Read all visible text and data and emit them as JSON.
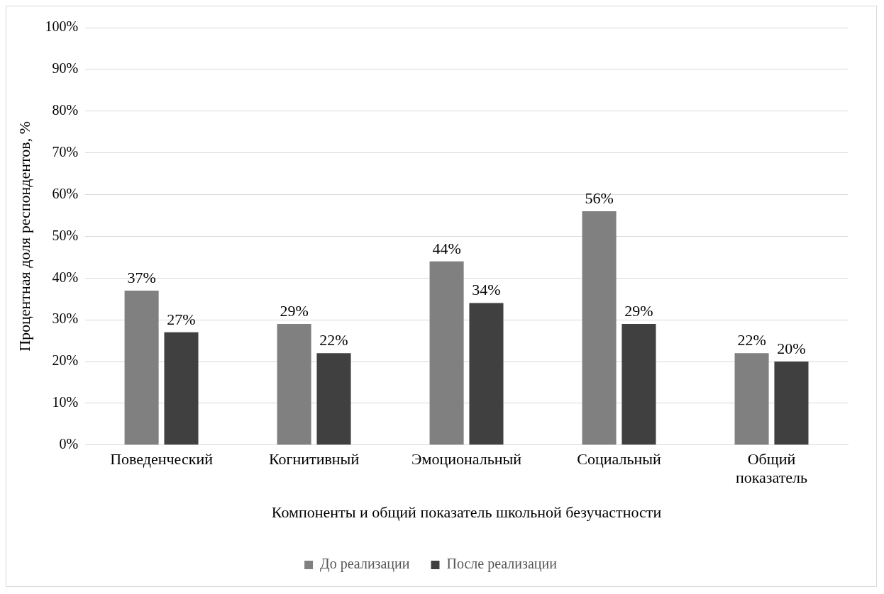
{
  "chart_data": {
    "type": "bar",
    "xlabel": "Компоненты и общий показатель школьной безучастности",
    "ylabel": "Процентная доля респондентов, %",
    "categories": [
      "Поведенческий",
      "Когнитивный",
      "Эмоциональный",
      "Социальный",
      "Общий показатель"
    ],
    "series": [
      {
        "name": "До реализации",
        "color": "#808080",
        "values": [
          37,
          29,
          44,
          56,
          22
        ]
      },
      {
        "name": "После реализации",
        "color": "#404040",
        "values": [
          27,
          22,
          34,
          29,
          20
        ]
      }
    ],
    "ylim": [
      0,
      100
    ],
    "yticks": [
      {
        "value": 0,
        "label": "0%"
      },
      {
        "value": 10,
        "label": "10%"
      },
      {
        "value": 20,
        "label": "20%"
      },
      {
        "value": 30,
        "label": "30%"
      },
      {
        "value": 40,
        "label": "40%"
      },
      {
        "value": 50,
        "label": "50%"
      },
      {
        "value": 60,
        "label": "60%"
      },
      {
        "value": 70,
        "label": "70%"
      },
      {
        "value": 80,
        "label": "80%"
      },
      {
        "value": 90,
        "label": "90%"
      },
      {
        "value": 100,
        "label": "100%"
      }
    ],
    "value_labels": [
      [
        "37%",
        "29%",
        "44%",
        "56%",
        "22%"
      ],
      [
        "27%",
        "22%",
        "34%",
        "29%",
        "20%"
      ]
    ],
    "grid": "y",
    "legend": "bottom"
  }
}
